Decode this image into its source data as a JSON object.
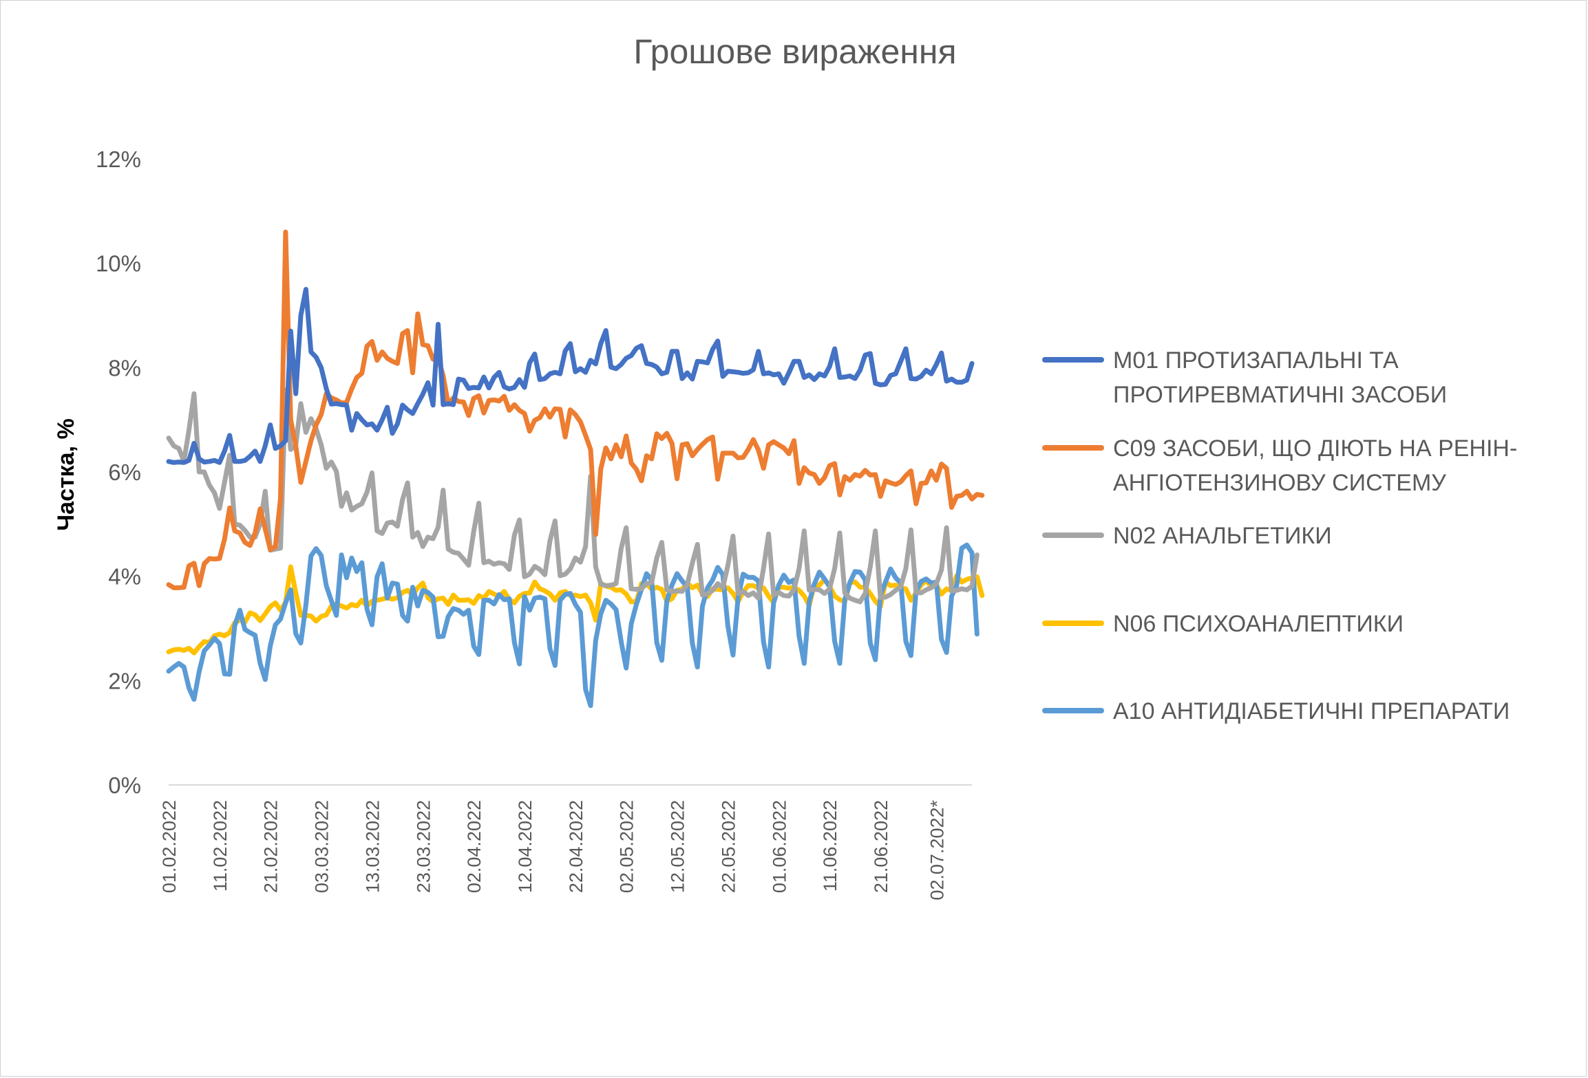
{
  "chart_data": {
    "type": "line",
    "title": "Грошове вираження",
    "xlabel": "",
    "ylabel": "Частка, %",
    "ylim": [
      0,
      0.12
    ],
    "yticks": [
      "0%",
      "2%",
      "4%",
      "6%",
      "8%",
      "10%",
      "12%"
    ],
    "y_tick_values": [
      0,
      0.02,
      0.04,
      0.06,
      0.08,
      0.1,
      0.12
    ],
    "x_tick_labels": [
      "01.02.2022",
      "11.02.2022",
      "21.02.2022",
      "03.03.2022",
      "13.03.2022",
      "23.03.2022",
      "02.04.2022",
      "12.04.2022",
      "22.04.2022",
      "02.05.2022",
      "12.05.2022",
      "22.05.2022",
      "01.06.2022",
      "11.06.2022",
      "21.06.2022",
      "02.07.2022*"
    ],
    "x_start": "01.02.2022",
    "x_end": "02.07.2022",
    "grid": false,
    "legend_position": "right",
    "series": [
      {
        "name": "M01 ПРОТИЗАПАЛЬНІ ТА ПРОТИРЕВМАТИЧНІ ЗАСОБИ",
        "color": "#4472C4",
        "values": [
          0.062,
          0.0618,
          0.0619,
          0.0618,
          0.0622,
          0.0655,
          0.0625,
          0.0619,
          0.062,
          0.0622,
          0.0618,
          0.064,
          0.067,
          0.062,
          0.062,
          0.0622,
          0.063,
          0.064,
          0.062,
          0.065,
          0.069,
          0.0645,
          0.065,
          0.066,
          0.087,
          0.075,
          0.09,
          0.095,
          0.083,
          0.082,
          0.08,
          0.076,
          0.073,
          0.0731,
          0.0729,
          0.0728,
          0.068,
          0.0712,
          0.07,
          0.069,
          0.0692,
          0.068,
          0.07,
          0.0724,
          0.0674,
          0.0692,
          0.0728,
          0.0719,
          0.0712,
          0.0731,
          0.0749,
          0.0771,
          0.0728,
          0.0883,
          0.0729,
          0.0731,
          0.0729,
          0.0778,
          0.0776,
          0.076,
          0.0762,
          0.0761,
          0.0782,
          0.0761,
          0.0781,
          0.0791,
          0.0763,
          0.0759,
          0.0762,
          0.0777,
          0.0762,
          0.0809,
          0.0826,
          0.0777,
          0.0779,
          0.0788,
          0.0791,
          0.0788,
          0.0832,
          0.0846,
          0.0792,
          0.0798,
          0.0791,
          0.0814,
          0.0807,
          0.0846,
          0.0871,
          0.0801,
          0.0798,
          0.0806,
          0.0818,
          0.0823,
          0.0837,
          0.0842,
          0.0808,
          0.0806,
          0.0801,
          0.0788,
          0.0791,
          0.0831,
          0.0831,
          0.0779,
          0.079,
          0.0778,
          0.0812,
          0.0811,
          0.0809,
          0.0835,
          0.0851,
          0.0783,
          0.0793,
          0.0792,
          0.0791,
          0.0789,
          0.079,
          0.0796,
          0.0831,
          0.0788,
          0.079,
          0.0786,
          0.0788,
          0.077,
          0.079,
          0.0812,
          0.0812,
          0.0781,
          0.0786,
          0.0777,
          0.0788,
          0.0784,
          0.0802,
          0.0836,
          0.0781,
          0.0782,
          0.0784,
          0.0779,
          0.0795,
          0.0824,
          0.0827,
          0.077,
          0.0767,
          0.0768,
          0.0785,
          0.0788,
          0.0812,
          0.0836,
          0.0779,
          0.0778,
          0.0783,
          0.0795,
          0.0788,
          0.0806,
          0.0828,
          0.0774,
          0.0778,
          0.0772,
          0.0772,
          0.0776,
          0.0808
        ]
      },
      {
        "name": "C09 ЗАСОБИ, ЩО ДІЮТЬ НА РЕНІН-АНГІОТЕНЗИНОВУ СИСТЕМУ",
        "color": "#ED7D31",
        "values": [
          0.0384,
          0.0378,
          0.0378,
          0.0379,
          0.042,
          0.0425,
          0.0382,
          0.0424,
          0.0434,
          0.0433,
          0.0434,
          0.0471,
          0.0531,
          0.0487,
          0.0483,
          0.0465,
          0.0459,
          0.0483,
          0.0529,
          0.0491,
          0.0451,
          0.0457,
          0.0549,
          0.106,
          0.07,
          0.065,
          0.058,
          0.062,
          0.066,
          0.069,
          0.071,
          0.075,
          0.0742,
          0.0738,
          0.0732,
          0.0733,
          0.0759,
          0.0781,
          0.0789,
          0.0841,
          0.085,
          0.0814,
          0.083,
          0.0818,
          0.0812,
          0.0808,
          0.0865,
          0.0871,
          0.079,
          0.0903,
          0.0844,
          0.0842,
          0.0816,
          0.0819,
          0.0784,
          0.073,
          0.0742,
          0.0735,
          0.0734,
          0.0708,
          0.0741,
          0.0746,
          0.0713,
          0.0737,
          0.0738,
          0.0736,
          0.0745,
          0.0718,
          0.0729,
          0.0718,
          0.0712,
          0.0678,
          0.0699,
          0.0704,
          0.0721,
          0.0705,
          0.0721,
          0.072,
          0.0667,
          0.0719,
          0.071,
          0.0696,
          0.067,
          0.0643,
          0.048,
          0.0606,
          0.0646,
          0.0625,
          0.0652,
          0.0629,
          0.0669,
          0.0617,
          0.0605,
          0.0583,
          0.0631,
          0.0625,
          0.0673,
          0.0664,
          0.0674,
          0.0655,
          0.0587,
          0.0652,
          0.0654,
          0.0631,
          0.0643,
          0.0653,
          0.0662,
          0.0667,
          0.0586,
          0.0636,
          0.0636,
          0.0636,
          0.0627,
          0.0628,
          0.0643,
          0.0662,
          0.0642,
          0.0607,
          0.0652,
          0.0658,
          0.0652,
          0.0646,
          0.0635,
          0.066,
          0.0578,
          0.0608,
          0.0598,
          0.0595,
          0.0578,
          0.0589,
          0.0612,
          0.0616,
          0.0556,
          0.0591,
          0.0584,
          0.0595,
          0.0592,
          0.0603,
          0.0594,
          0.0595,
          0.0553,
          0.0583,
          0.0579,
          0.0576,
          0.0581,
          0.0593,
          0.0602,
          0.0539,
          0.0578,
          0.0579,
          0.0602,
          0.0584,
          0.0615,
          0.0607,
          0.0532,
          0.0553,
          0.0555,
          0.0563,
          0.0548,
          0.0557,
          0.0555
        ]
      },
      {
        "name": "N02 АНАЛЬГЕТИКИ",
        "color": "#A5A5A5",
        "values": [
          0.0665,
          0.065,
          0.0645,
          0.062,
          0.068,
          0.075,
          0.06,
          0.06,
          0.0575,
          0.056,
          0.053,
          0.058,
          0.0632,
          0.05,
          0.0498,
          0.0488,
          0.0475,
          0.0475,
          0.05,
          0.0563,
          0.045,
          0.0452,
          0.0454,
          0.0757,
          0.0643,
          0.0651,
          0.0731,
          0.0676,
          0.0702,
          0.0683,
          0.0652,
          0.0607,
          0.0619,
          0.0601,
          0.0534,
          0.056,
          0.0527,
          0.0534,
          0.0539,
          0.0561,
          0.0598,
          0.0487,
          0.0482,
          0.0502,
          0.0504,
          0.0496,
          0.0547,
          0.0579,
          0.0475,
          0.0484,
          0.0457,
          0.0475,
          0.0472,
          0.0494,
          0.0565,
          0.0452,
          0.0446,
          0.0444,
          0.0433,
          0.0421,
          0.0486,
          0.054,
          0.0426,
          0.0429,
          0.0423,
          0.0426,
          0.0424,
          0.0413,
          0.0479,
          0.0508,
          0.0399,
          0.0404,
          0.0419,
          0.0413,
          0.0403,
          0.0468,
          0.0506,
          0.0401,
          0.0404,
          0.0414,
          0.0435,
          0.0427,
          0.0457,
          0.0592,
          0.0418,
          0.0385,
          0.0382,
          0.0383,
          0.0386,
          0.0453,
          0.0493,
          0.0376,
          0.0375,
          0.0376,
          0.0386,
          0.0388,
          0.0435,
          0.0465,
          0.0374,
          0.0371,
          0.0372,
          0.0371,
          0.0384,
          0.0425,
          0.0461,
          0.0364,
          0.0367,
          0.0373,
          0.0386,
          0.0378,
          0.0421,
          0.0477,
          0.0367,
          0.0371,
          0.0363,
          0.0368,
          0.0358,
          0.0415,
          0.0481,
          0.0364,
          0.0369,
          0.0363,
          0.0362,
          0.0374,
          0.0415,
          0.0487,
          0.0373,
          0.0375,
          0.0374,
          0.0367,
          0.0376,
          0.0415,
          0.0483,
          0.0368,
          0.0358,
          0.0354,
          0.0351,
          0.0367,
          0.0418,
          0.0487,
          0.0359,
          0.036,
          0.0365,
          0.0373,
          0.038,
          0.0415,
          0.0489,
          0.0369,
          0.0368,
          0.0374,
          0.0378,
          0.0386,
          0.0412,
          0.0493,
          0.0372,
          0.0373,
          0.0376,
          0.0374,
          0.0381,
          0.0441
        ]
      },
      {
        "name": "N06 ПСИХОАНАЛЕПТИКИ",
        "color": "#FFC000",
        "values": [
          0.0255,
          0.0259,
          0.026,
          0.0258,
          0.0262,
          0.0253,
          0.0265,
          0.0275,
          0.0273,
          0.0286,
          0.0289,
          0.0286,
          0.0292,
          0.0311,
          0.0316,
          0.0312,
          0.033,
          0.0326,
          0.0315,
          0.0328,
          0.0342,
          0.0349,
          0.0335,
          0.035,
          0.0418,
          0.0368,
          0.0325,
          0.0325,
          0.0324,
          0.0314,
          0.0323,
          0.0326,
          0.0343,
          0.0347,
          0.0343,
          0.0339,
          0.0346,
          0.0343,
          0.0354,
          0.0343,
          0.0352,
          0.0354,
          0.0356,
          0.0359,
          0.0356,
          0.0359,
          0.0369,
          0.0373,
          0.0364,
          0.0378,
          0.0387,
          0.0359,
          0.0351,
          0.0357,
          0.0358,
          0.0346,
          0.0364,
          0.0354,
          0.0354,
          0.0355,
          0.0348,
          0.0363,
          0.0358,
          0.0371,
          0.0366,
          0.0361,
          0.0371,
          0.0355,
          0.0349,
          0.0362,
          0.0367,
          0.0368,
          0.0389,
          0.0376,
          0.0372,
          0.0366,
          0.0354,
          0.0368,
          0.0371,
          0.0363,
          0.0364,
          0.0361,
          0.0364,
          0.0349,
          0.0316,
          0.0387,
          0.0381,
          0.0379,
          0.0373,
          0.0374,
          0.0366,
          0.0351,
          0.0351,
          0.0386,
          0.0386,
          0.0375,
          0.0379,
          0.0375,
          0.0352,
          0.0357,
          0.0373,
          0.0375,
          0.0387,
          0.0378,
          0.0383,
          0.0366,
          0.0361,
          0.0376,
          0.0375,
          0.0374,
          0.0378,
          0.0367,
          0.0351,
          0.037,
          0.0382,
          0.0382,
          0.0377,
          0.0378,
          0.0362,
          0.0349,
          0.0379,
          0.0379,
          0.0377,
          0.0379,
          0.0373,
          0.0362,
          0.0344,
          0.0384,
          0.0383,
          0.0394,
          0.0381,
          0.0362,
          0.0355,
          0.0351,
          0.0388,
          0.0389,
          0.0379,
          0.0379,
          0.0367,
          0.0352,
          0.0342,
          0.0389,
          0.0382,
          0.0383,
          0.0378,
          0.0376,
          0.0354,
          0.0368,
          0.0383,
          0.0392,
          0.038,
          0.0383,
          0.0366,
          0.0376,
          0.0372,
          0.0401,
          0.0389,
          0.0394,
          0.0397,
          0.0399,
          0.0363
        ]
      },
      {
        "name": "A10 АНТИДІАБЕТИЧНІ ПРЕПАРАТИ",
        "color": "#5B9BD5",
        "values": [
          0.0218,
          0.0226,
          0.0233,
          0.0226,
          0.0186,
          0.0164,
          0.0217,
          0.0257,
          0.0268,
          0.0281,
          0.0271,
          0.0213,
          0.0212,
          0.0305,
          0.0335,
          0.0298,
          0.0292,
          0.0287,
          0.0233,
          0.0202,
          0.0267,
          0.0307,
          0.0318,
          0.0349,
          0.0374,
          0.029,
          0.0272,
          0.0345,
          0.0439,
          0.0453,
          0.044,
          0.0382,
          0.0353,
          0.0325,
          0.0441,
          0.0397,
          0.0435,
          0.0409,
          0.0426,
          0.0337,
          0.0307,
          0.0399,
          0.0424,
          0.0358,
          0.0387,
          0.0385,
          0.0325,
          0.0314,
          0.0379,
          0.0343,
          0.0373,
          0.0369,
          0.036,
          0.0284,
          0.0285,
          0.0323,
          0.0338,
          0.0335,
          0.0327,
          0.0335,
          0.0266,
          0.025,
          0.0354,
          0.0354,
          0.0347,
          0.0365,
          0.0355,
          0.0357,
          0.0273,
          0.0232,
          0.0361,
          0.0335,
          0.0358,
          0.036,
          0.0357,
          0.0261,
          0.0229,
          0.0354,
          0.0365,
          0.0367,
          0.0346,
          0.0331,
          0.0183,
          0.0152,
          0.0277,
          0.0328,
          0.0354,
          0.0347,
          0.0336,
          0.0275,
          0.0224,
          0.0309,
          0.0346,
          0.0375,
          0.0405,
          0.0393,
          0.0273,
          0.0239,
          0.0353,
          0.0383,
          0.0405,
          0.0391,
          0.038,
          0.0272,
          0.0226,
          0.0343,
          0.0378,
          0.0393,
          0.0417,
          0.0403,
          0.0304,
          0.0249,
          0.0359,
          0.0404,
          0.0398,
          0.0398,
          0.0391,
          0.0274,
          0.0226,
          0.0349,
          0.0383,
          0.0402,
          0.0388,
          0.0393,
          0.0285,
          0.0233,
          0.0351,
          0.0385,
          0.0408,
          0.0395,
          0.038,
          0.0275,
          0.0233,
          0.0355,
          0.0388,
          0.0409,
          0.0408,
          0.0393,
          0.0272,
          0.024,
          0.0364,
          0.0389,
          0.0414,
          0.0397,
          0.0387,
          0.0275,
          0.0248,
          0.0371,
          0.039,
          0.0395,
          0.0387,
          0.0389,
          0.0279,
          0.0254,
          0.0362,
          0.0382,
          0.0454,
          0.046,
          0.0445,
          0.0289
        ]
      }
    ]
  }
}
